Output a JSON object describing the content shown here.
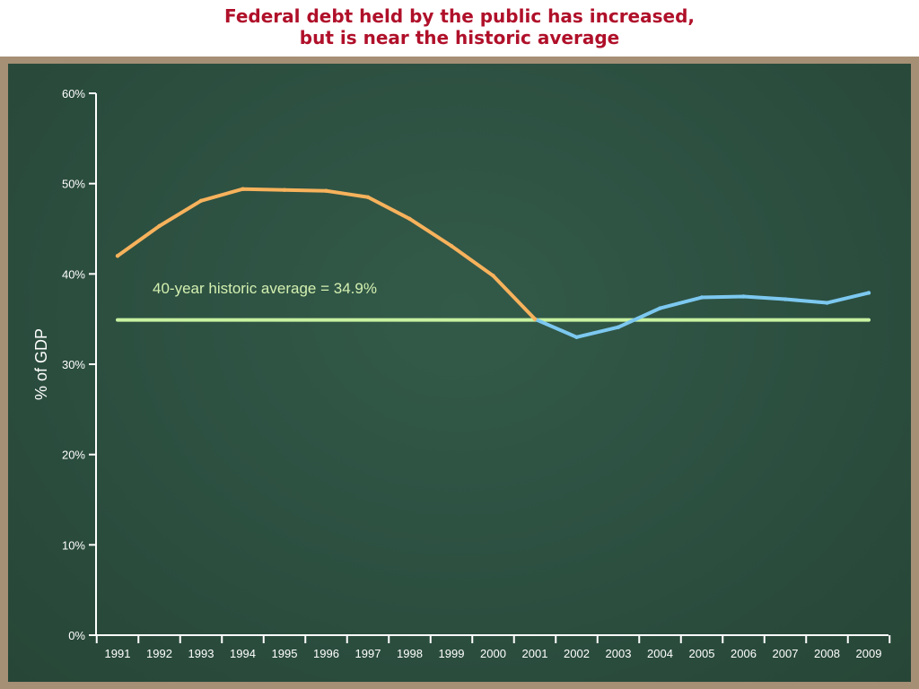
{
  "title": {
    "line1": "Federal debt held by the public has increased,",
    "line2": "but is near the historic average"
  },
  "colors": {
    "title": "#b0102a",
    "board_frame": "#a58f75",
    "board": "#2c4f40",
    "axis": "#ffffff",
    "series_before": "#f7b25c",
    "series_after": "#7cc8f0",
    "average_line": "#c8f2a0"
  },
  "chart_data": {
    "type": "line",
    "title": "Federal debt held by the public has increased, but is near the historic average",
    "ylabel": "% of GDP",
    "xlabel": "",
    "ylim": [
      0,
      60
    ],
    "yticks": [
      "0%",
      "10%",
      "20%",
      "30%",
      "40%",
      "50%",
      "60%"
    ],
    "ytick_values": [
      0,
      10,
      20,
      30,
      40,
      50,
      60
    ],
    "categories": [
      "1991",
      "1992",
      "1993",
      "1994",
      "1995",
      "1996",
      "1997",
      "1998",
      "1999",
      "2000",
      "2001",
      "2002",
      "2003",
      "2004",
      "2005",
      "2006",
      "2007",
      "2008",
      "2009"
    ],
    "series": [
      {
        "values": [
          42.0,
          45.3,
          48.1,
          49.4,
          49.3,
          49.2,
          48.5,
          46.1,
          43.1,
          39.8,
          35.0,
          33.0,
          34.1,
          36.2,
          37.4,
          37.5,
          37.2,
          36.8,
          37.9
        ]
      }
    ],
    "reference_line": {
      "value": 34.9,
      "label": "40-year historic average = 34.9%"
    },
    "grid": false,
    "legend": "none"
  }
}
